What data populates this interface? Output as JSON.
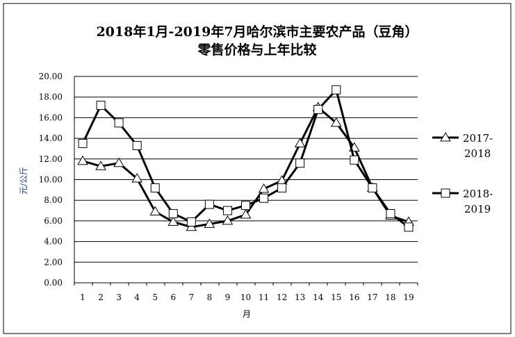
{
  "chart_data": {
    "type": "line",
    "title": [
      "2018年1月-2019年7月哈尔滨市主要农产品（豆角）",
      "零售价格与上年比较"
    ],
    "xlabel": "月",
    "ylabel": "元/公斤",
    "categories": [
      "1",
      "2",
      "3",
      "4",
      "5",
      "6",
      "7",
      "8",
      "9",
      "10",
      "11",
      "12",
      "13",
      "14",
      "15",
      "16",
      "17",
      "18",
      "19"
    ],
    "ylim": [
      0,
      20
    ],
    "yticks": [
      "0.00",
      "2.00",
      "4.00",
      "6.00",
      "8.00",
      "10.00",
      "12.00",
      "14.00",
      "16.00",
      "18.00",
      "20.00"
    ],
    "grid": true,
    "legend_position": "right",
    "series": [
      {
        "name": [
          "2017-",
          "2018"
        ],
        "marker": "triangle",
        "values": [
          11.8,
          11.3,
          11.6,
          10.1,
          6.9,
          5.9,
          5.4,
          5.7,
          6.0,
          6.6,
          9.1,
          9.9,
          13.5,
          17.0,
          15.5,
          13.1,
          9.2,
          6.5,
          5.9
        ]
      },
      {
        "name": [
          "2018-",
          "2019"
        ],
        "marker": "square",
        "values": [
          13.5,
          17.2,
          15.5,
          13.3,
          9.2,
          6.7,
          5.9,
          7.6,
          7.0,
          7.5,
          8.2,
          9.2,
          11.6,
          16.8,
          18.7,
          11.9,
          9.2,
          6.7,
          5.4
        ]
      }
    ],
    "colors": {
      "line": "#000000",
      "ylabel": "#1f3a8a"
    }
  }
}
